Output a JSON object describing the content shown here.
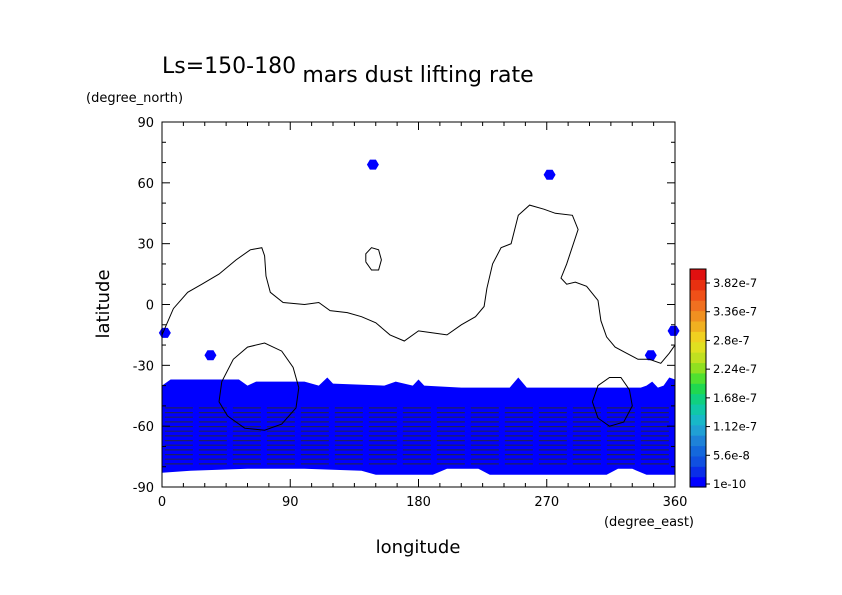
{
  "chart_data": {
    "type": "heatmap",
    "title": "mars dust lifting rate",
    "subtitle": "Ls=150-180",
    "xlabel": "longitude",
    "ylabel": "latitude",
    "x_units": "(degree_east)",
    "y_units": "(degree_north)",
    "xlim": [
      0,
      360
    ],
    "ylim": [
      -90,
      90
    ],
    "x_ticks": [
      "0",
      "90",
      "180",
      "270",
      "360"
    ],
    "y_ticks": [
      "-90",
      "-60",
      "-30",
      "0",
      "30",
      "60",
      "90"
    ],
    "x_tick_values": [
      0,
      90,
      180,
      270,
      360
    ],
    "y_tick_values": [
      -90,
      -60,
      -30,
      0,
      30,
      60,
      90
    ],
    "colorbar": {
      "labels": [
        "1e-10",
        "5.6e-8",
        "1.12e-7",
        "1.68e-7",
        "2.24e-7",
        "2.8e-7",
        "3.36e-7",
        "3.82e-7"
      ],
      "colors": [
        "#0000ff",
        "#0a2ee8",
        "#1050e0",
        "#1468dc",
        "#1e82d8",
        "#20a0d4",
        "#18b8c8",
        "#10c8a8",
        "#10d080",
        "#20d850",
        "#50e030",
        "#90e020",
        "#c0e020",
        "#e0e020",
        "#f0d020",
        "#f0b020",
        "#f09020",
        "#f07020",
        "#f05018",
        "#e83010",
        "#e01010"
      ]
    },
    "regions": {
      "south_band": {
        "description_value": "dust lifting band",
        "lat_top": -37,
        "lat_bottom": -84,
        "color": "#0000ff"
      },
      "patches": [
        {
          "lon": 148,
          "lat": 69,
          "color": "#0000ff"
        },
        {
          "lon": 272,
          "lat": 64,
          "color": "#0000ff"
        },
        {
          "lon": 34,
          "lat": -25,
          "color": "#0000ff"
        },
        {
          "lon": 2,
          "lat": -14,
          "color": "#0000ff"
        },
        {
          "lon": 343,
          "lat": -25,
          "color": "#0000ff"
        },
        {
          "lon": 359,
          "lat": -13,
          "color": "#0000ff"
        }
      ]
    },
    "contours": [
      {
        "name": "main",
        "points": [
          [
            0,
            -15
          ],
          [
            8,
            -2
          ],
          [
            18,
            6
          ],
          [
            28,
            10
          ],
          [
            40,
            15
          ],
          [
            52,
            22
          ],
          [
            62,
            27
          ],
          [
            70,
            28
          ],
          [
            72,
            24
          ],
          [
            73,
            14
          ],
          [
            76,
            6
          ],
          [
            85,
            1
          ],
          [
            100,
            0
          ],
          [
            110,
            1
          ],
          [
            118,
            -3
          ],
          [
            130,
            -4
          ],
          [
            140,
            -6
          ],
          [
            150,
            -9
          ],
          [
            160,
            -15
          ],
          [
            170,
            -18
          ],
          [
            180,
            -13
          ],
          [
            190,
            -14
          ],
          [
            200,
            -15
          ],
          [
            210,
            -10
          ],
          [
            220,
            -6
          ],
          [
            226,
            -1
          ],
          [
            228,
            8
          ],
          [
            232,
            20
          ],
          [
            238,
            28
          ],
          [
            245,
            30
          ],
          [
            250,
            44
          ],
          [
            258,
            49
          ],
          [
            268,
            47
          ],
          [
            276,
            45
          ],
          [
            288,
            44
          ],
          [
            292,
            37
          ],
          [
            284,
            20
          ],
          [
            280,
            13
          ],
          [
            284,
            10
          ],
          [
            290,
            11
          ],
          [
            298,
            9
          ],
          [
            306,
            2
          ],
          [
            308,
            -8
          ],
          [
            312,
            -16
          ],
          [
            318,
            -21
          ],
          [
            326,
            -24
          ],
          [
            334,
            -27
          ],
          [
            342,
            -27
          ],
          [
            350,
            -29
          ],
          [
            356,
            -24
          ],
          [
            360,
            -20
          ]
        ]
      },
      {
        "name": "small-north",
        "points": [
          [
            143,
            21
          ],
          [
            147,
            17
          ],
          [
            152,
            17
          ],
          [
            154,
            22
          ],
          [
            152,
            27
          ],
          [
            147,
            28
          ],
          [
            143,
            25
          ],
          [
            143,
            21
          ]
        ]
      },
      {
        "name": "ring-west",
        "points": [
          [
            40,
            -48
          ],
          [
            42,
            -38
          ],
          [
            50,
            -27
          ],
          [
            60,
            -21
          ],
          [
            72,
            -19
          ],
          [
            84,
            -23
          ],
          [
            92,
            -31
          ],
          [
            96,
            -41
          ],
          [
            94,
            -51
          ],
          [
            84,
            -59
          ],
          [
            72,
            -62
          ],
          [
            58,
            -61
          ],
          [
            46,
            -55
          ],
          [
            40,
            -48
          ]
        ]
      },
      {
        "name": "ring-east",
        "points": [
          [
            302,
            -48
          ],
          [
            306,
            -40
          ],
          [
            314,
            -36
          ],
          [
            322,
            -36
          ],
          [
            328,
            -42
          ],
          [
            330,
            -50
          ],
          [
            324,
            -58
          ],
          [
            314,
            -60
          ],
          [
            306,
            -56
          ],
          [
            302,
            -48
          ]
        ]
      }
    ]
  }
}
